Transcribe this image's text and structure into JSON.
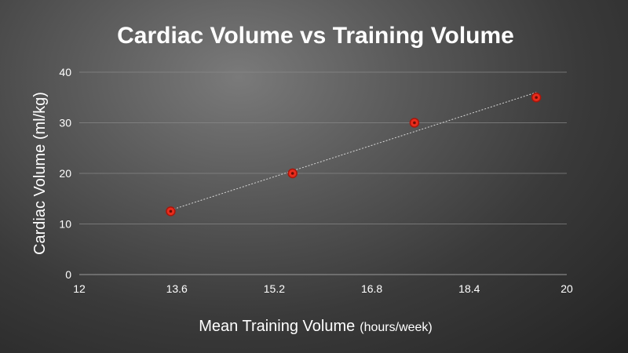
{
  "chart_data": {
    "type": "scatter",
    "title": "Cardiac Volume vs Training Volume",
    "xlabel": "Mean Training Volume",
    "xlabel_unit": "(hours/week)",
    "ylabel": "Cardiac Volume (ml/kg)",
    "xlim": [
      12,
      20
    ],
    "ylim": [
      0,
      40
    ],
    "x_ticks": [
      "12",
      "13.6",
      "15.2",
      "16.8",
      "18.4",
      "20"
    ],
    "y_ticks": [
      "0",
      "10",
      "20",
      "30",
      "40"
    ],
    "grid": true,
    "trendline": true,
    "point_color": "#e82c1c",
    "points": [
      {
        "x": 13.5,
        "y": 12.5
      },
      {
        "x": 15.5,
        "y": 20
      },
      {
        "x": 17.5,
        "y": 30
      },
      {
        "x": 19.5,
        "y": 35
      }
    ]
  }
}
